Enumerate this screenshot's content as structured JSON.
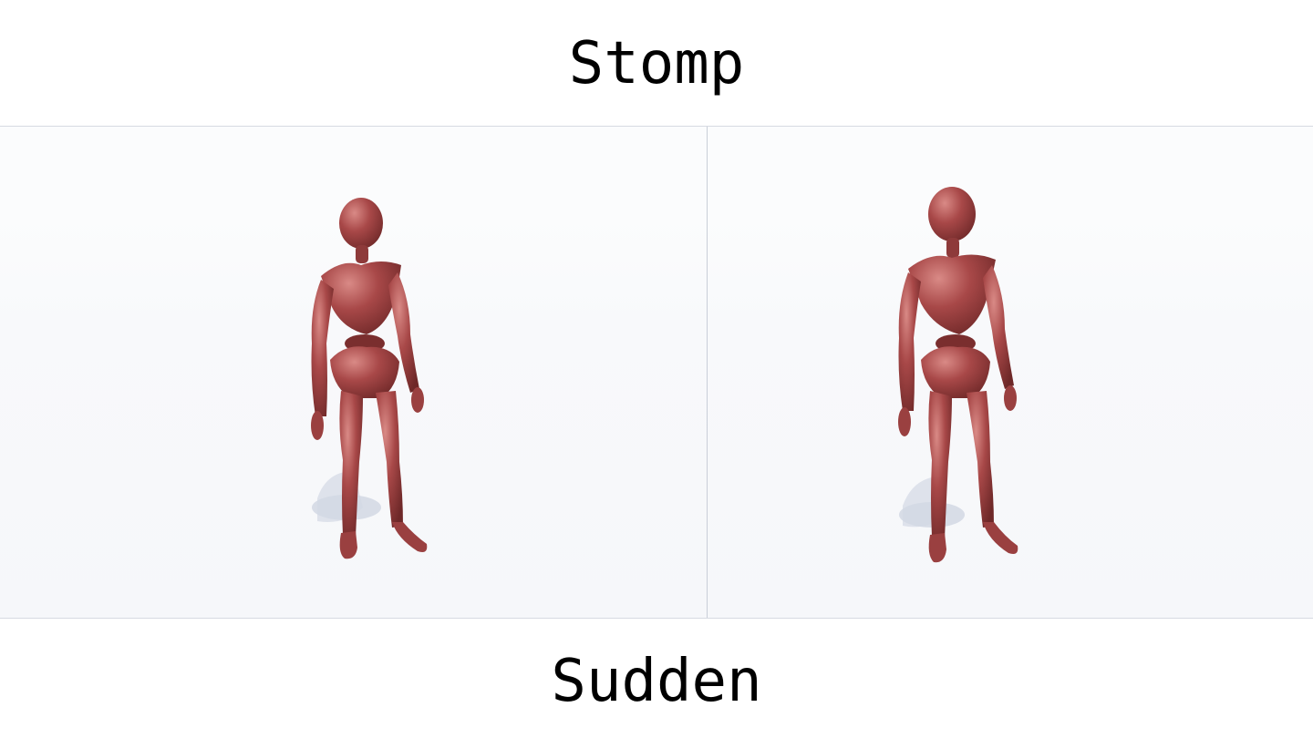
{
  "header": {
    "title": "Stomp"
  },
  "footer": {
    "title": "Sudden"
  },
  "panels": [
    {
      "name": "left-viewport",
      "figure_color": "#a84848"
    },
    {
      "name": "right-viewport",
      "figure_color": "#a84848"
    }
  ],
  "colors": {
    "background": "#ffffff",
    "viewport_bg": "#f8f9fb",
    "figure": "#a84848",
    "figure_shade": "#7a2e2e",
    "figure_highlight": "#d98a86",
    "shadow": "#cfd6e2",
    "divider": "#c9ced8"
  }
}
